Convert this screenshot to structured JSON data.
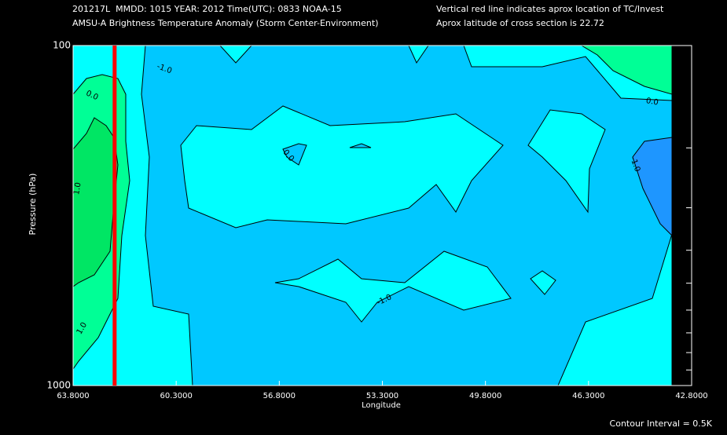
{
  "chart_data": {
    "type": "contour",
    "title": "201217L  MMDD: 1015 YEAR: 2012 Time(UTC): 0833 NOAA-15",
    "subtitle": "AMSU-A Brightness Temperature Anomaly (Storm Center-Environment)",
    "note_red_line": "Vertical red line indicates aprox location of TC/Invest",
    "note_latitude": "Aprox latitude of cross section is 22.72",
    "x_label": "Longitude",
    "y_label": "Pressure (hPa)",
    "footer": "Contour Interval = 0.5K",
    "xlim": [
      63.8,
      42.8
    ],
    "xticks": [
      {
        "value": 63.8,
        "label": "63.8000"
      },
      {
        "value": 60.3,
        "label": "60.3000"
      },
      {
        "value": 56.8,
        "label": "56.8000"
      },
      {
        "value": 53.3,
        "label": "53.3000"
      },
      {
        "value": 49.8,
        "label": "49.8000"
      },
      {
        "value": 46.3,
        "label": "46.3000"
      },
      {
        "value": 42.8,
        "label": "42.8000"
      }
    ],
    "ylim": [
      100,
      1000
    ],
    "ylog": true,
    "yticks": [
      100,
      1000
    ],
    "yminor": [
      200,
      300,
      400,
      500,
      600,
      700,
      800,
      900
    ],
    "tc_longitude": 62.39,
    "tc_color": "#ff0000",
    "contour_levels": [
      {
        "value": -1.5,
        "color": "#1e96ff"
      },
      {
        "value": -1.0,
        "color": "#00c8ff"
      },
      {
        "value": -0.5,
        "color": "#00ffff"
      },
      {
        "value": 0.5,
        "color": "#00ff96"
      },
      {
        "value": 1.0,
        "color": "#00e664"
      }
    ],
    "contour_labels": [
      {
        "value": -1,
        "label": "-1.0"
      },
      {
        "value": 0,
        "label": "0.0"
      },
      {
        "value": 1,
        "label": "1.0"
      },
      {
        "value": 1,
        "label": "1.0"
      },
      {
        "value": 0,
        "label": "0.0"
      },
      {
        "value": -1,
        "label": "-1.0"
      },
      {
        "value": 0,
        "label": "0.0"
      },
      {
        "value": -1,
        "label": "-1.0"
      }
    ]
  }
}
